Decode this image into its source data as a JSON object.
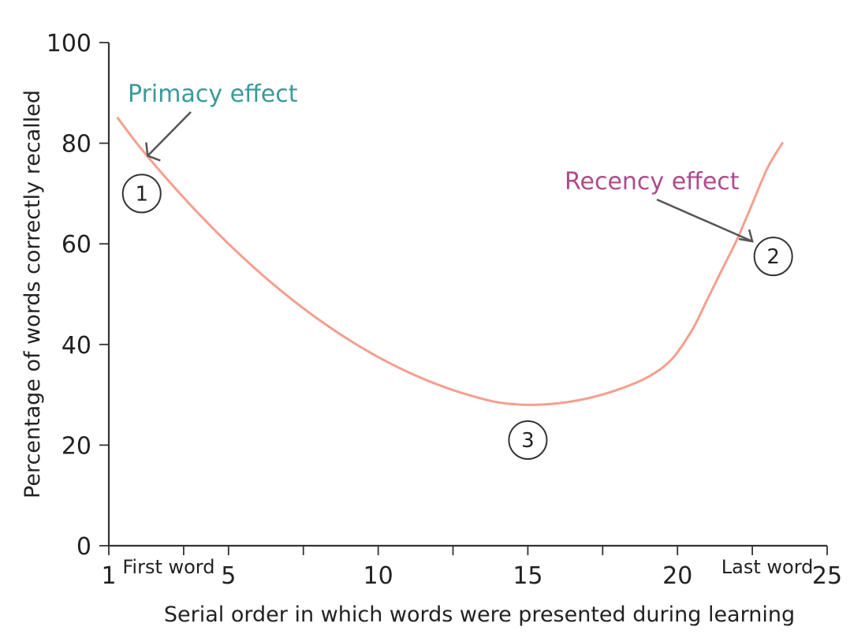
{
  "chart_data": {
    "type": "line",
    "title": "",
    "xlabel": "Serial order in which words were presented during learning",
    "ylabel": "Percentage of words correctly recalled",
    "xlim": [
      1,
      25
    ],
    "ylim": [
      0,
      100
    ],
    "x_ticks": [
      1,
      5,
      10,
      15,
      20,
      25
    ],
    "x_minor_ticks": [
      3.5,
      7.5,
      12.5,
      17.5,
      22.5
    ],
    "y_ticks": [
      0,
      20,
      40,
      60,
      80,
      100
    ],
    "x_tick_labels": [
      "1",
      "5",
      "10",
      "15",
      "20",
      "25"
    ],
    "y_tick_labels": [
      "0",
      "20",
      "40",
      "60",
      "80",
      "100"
    ],
    "grid": false,
    "curve_color": "#f49f8e",
    "series": [
      {
        "x": [
          1.3,
          2,
          3,
          4,
          5,
          6,
          7,
          8,
          9,
          10,
          11,
          12,
          13,
          14,
          15,
          16,
          17,
          18,
          19,
          19.8,
          20.5,
          21,
          21.5,
          22,
          22.5,
          23,
          23.5
        ],
        "y": [
          85,
          79.5,
          72.5,
          66,
          60,
          54.5,
          49.5,
          45,
          41,
          37.5,
          34.5,
          32,
          30,
          28.5,
          28,
          28.3,
          29.3,
          31,
          33.5,
          37,
          43,
          49,
          55,
          61,
          68,
          75,
          80
        ]
      }
    ],
    "below_axis_labels": {
      "first": {
        "text": "First word",
        "x": 3
      },
      "last": {
        "text": "Last word",
        "x": 23
      }
    },
    "annotations": [
      {
        "text": "Primacy effect",
        "color": "#3a9a9a",
        "point": [
          2.3,
          77.5
        ]
      },
      {
        "text": "Recency effect",
        "color": "#b04a8a",
        "point": [
          22.5,
          60.5
        ]
      }
    ],
    "markers": [
      {
        "label": "1",
        "x": 2.1,
        "y": 70
      },
      {
        "label": "2",
        "x": 23.2,
        "y": 57.5
      },
      {
        "label": "3",
        "x": 15,
        "y": 21
      }
    ]
  }
}
